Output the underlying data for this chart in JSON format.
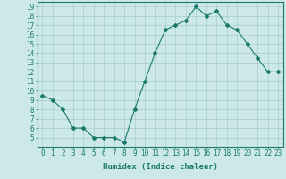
{
  "x": [
    0,
    1,
    2,
    3,
    4,
    5,
    6,
    7,
    8,
    9,
    10,
    11,
    12,
    13,
    14,
    15,
    16,
    17,
    18,
    19,
    20,
    21,
    22,
    23
  ],
  "y": [
    9.5,
    9,
    8,
    6,
    6,
    5,
    5,
    5,
    4.5,
    8,
    11,
    14,
    16.5,
    17,
    17.5,
    19,
    18,
    18.5,
    17,
    16.5,
    15,
    13.5,
    12,
    12
  ],
  "line_color": "#1a7a6e",
  "marker": "D",
  "marker_size": 2,
  "bg_color": "#cce8e8",
  "grid_color": "#aacccc",
  "xlabel": "Humidex (Indice chaleur)",
  "xlim": [
    -0.5,
    23.5
  ],
  "ylim": [
    4.0,
    19.5
  ],
  "yticks": [
    5,
    6,
    7,
    8,
    9,
    10,
    11,
    12,
    13,
    14,
    15,
    16,
    17,
    18,
    19
  ],
  "xticks": [
    0,
    1,
    2,
    3,
    4,
    5,
    6,
    7,
    8,
    9,
    10,
    11,
    12,
    13,
    14,
    15,
    16,
    17,
    18,
    19,
    20,
    21,
    22,
    23
  ],
  "tick_color": "#1a7a6e",
  "tick_fontsize": 5.5,
  "xlabel_fontsize": 6.5,
  "border_color": "#1a7a6e",
  "linewidth": 0.8
}
